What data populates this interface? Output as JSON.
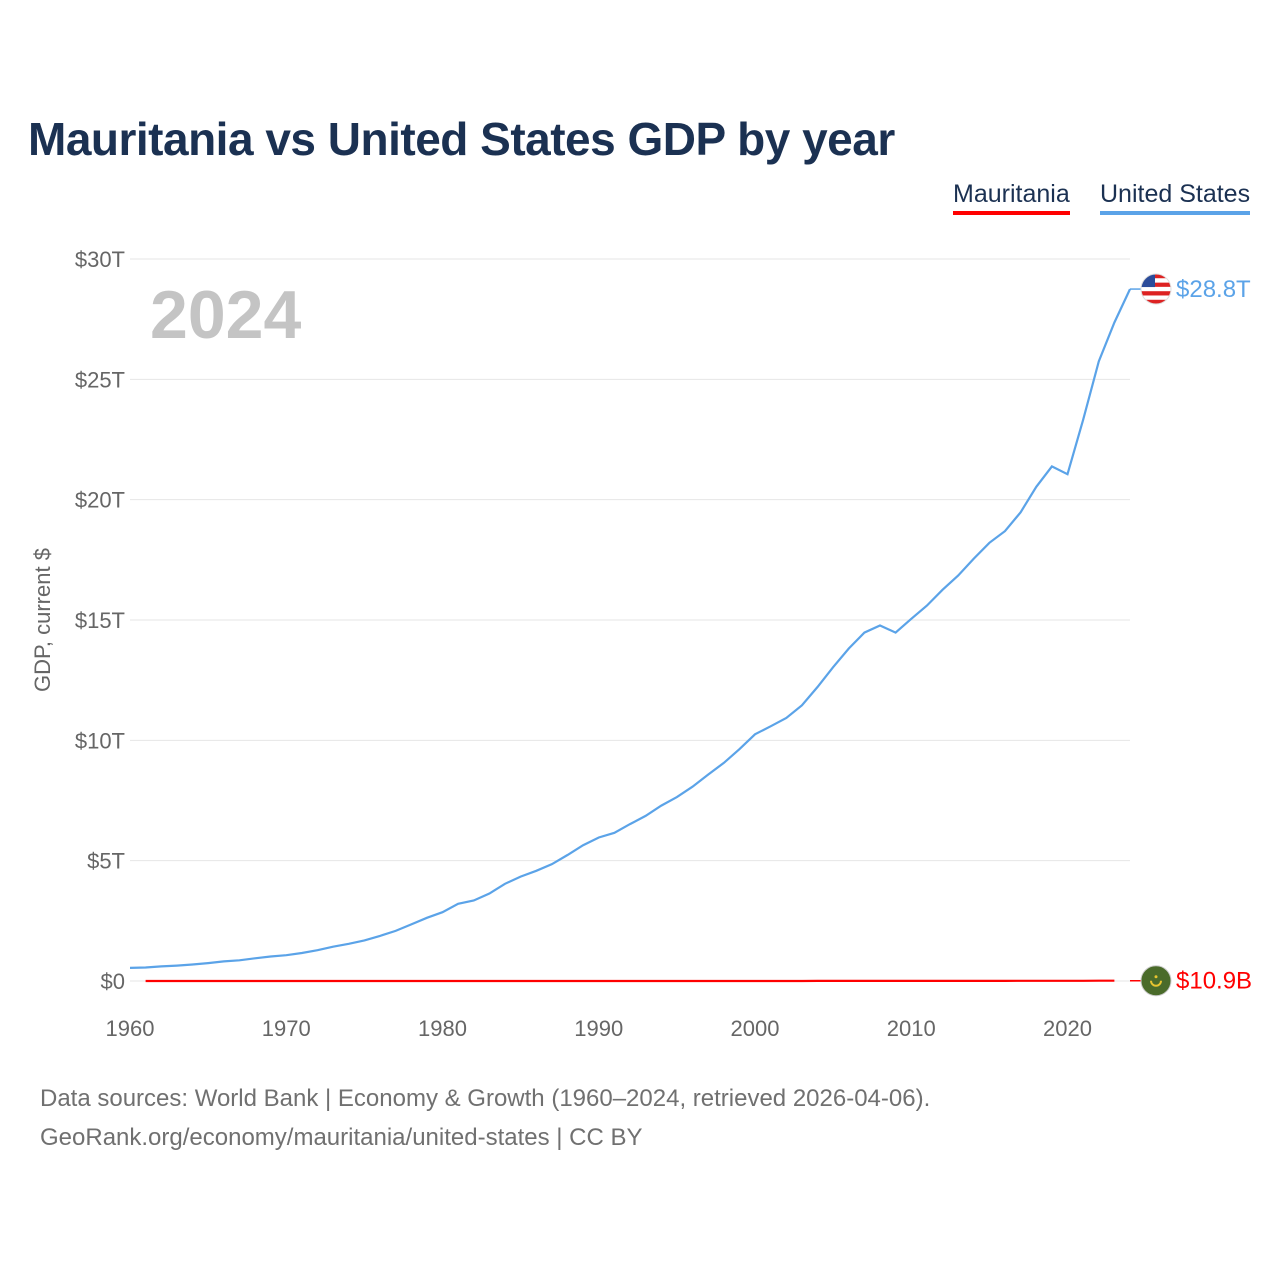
{
  "title": "Mauritania vs United States GDP by year",
  "legend": [
    {
      "label": "Mauritania",
      "color": "#ff0000"
    },
    {
      "label": "United States",
      "color": "#5ba3e8"
    }
  ],
  "sources": {
    "line1": "Data sources: World Bank | Economy & Growth (1960–2024, retrieved 2026-04-06).",
    "line2": "GeoRank.org/economy/mauritania/united-states | CC BY"
  },
  "chart_data": {
    "type": "line",
    "title": "Mauritania vs United States GDP by year",
    "ylabel": "GDP, current $",
    "xlabel": "",
    "current_year_label": "2024",
    "xlim": [
      1960,
      2024
    ],
    "ylim": [
      0,
      30
    ],
    "y_unit": "trillion USD",
    "x_ticks": [
      "1960",
      "1970",
      "1980",
      "1990",
      "2000",
      "2010",
      "2020"
    ],
    "y_ticks": [
      {
        "value": 0,
        "label": "$0"
      },
      {
        "value": 5,
        "label": "$5T"
      },
      {
        "value": 10,
        "label": "$10T"
      },
      {
        "value": 15,
        "label": "$15T"
      },
      {
        "value": 20,
        "label": "$20T"
      },
      {
        "value": 25,
        "label": "$25T"
      },
      {
        "value": 30,
        "label": "$30T"
      }
    ],
    "grid": true,
    "legend_position": "top-right",
    "series": [
      {
        "name": "United States",
        "color": "#5ba3e8",
        "end_label": "$28.8T",
        "flag": "us-flag",
        "start_year": 1960,
        "values": [
          0.543,
          0.563,
          0.605,
          0.638,
          0.686,
          0.744,
          0.815,
          0.862,
          0.943,
          1.019,
          1.073,
          1.165,
          1.279,
          1.425,
          1.545,
          1.685,
          1.873,
          2.082,
          2.352,
          2.627,
          2.857,
          3.207,
          3.344,
          3.634,
          4.037,
          4.339,
          4.58,
          4.855,
          5.236,
          5.642,
          5.963,
          6.158,
          6.52,
          6.859,
          7.287,
          7.64,
          8.073,
          8.578,
          9.063,
          9.631,
          10.251,
          10.582,
          10.929,
          11.457,
          12.217,
          13.039,
          13.815,
          14.475,
          14.77,
          14.478,
          15.049,
          15.6,
          16.254,
          16.843,
          17.551,
          18.206,
          18.695,
          19.477,
          20.533,
          21.381,
          21.06,
          23.315,
          25.744,
          27.361,
          28.751
        ]
      },
      {
        "name": "Mauritania",
        "color": "#ff0000",
        "end_label": "$10.9B",
        "flag": "mauritania-flag",
        "start_year": 1961,
        "values": [
          0.0001,
          0.0001,
          0.0001,
          0.00013,
          0.00016,
          0.00017,
          0.00018,
          0.00019,
          0.0002,
          0.00021,
          0.00025,
          0.0003,
          0.00035,
          0.00045,
          0.00048,
          0.00054,
          0.00058,
          0.00063,
          0.00071,
          0.00074,
          0.00068,
          0.00075,
          0.0007,
          0.0007,
          0.00078,
          0.00085,
          0.00095,
          0.0009,
          0.00102,
          0.00106,
          0.00112,
          0.00118,
          0.0012,
          0.0014,
          0.00142,
          0.0014,
          0.0013,
          0.0013,
          0.0013,
          0.0013,
          0.00135,
          0.0015,
          0.0018,
          0.0022,
          0.0027,
          0.0031,
          0.004,
          0.0035,
          0.0046,
          0.0053,
          0.0057,
          0.0058,
          0.0059,
          0.0052,
          0.0055,
          0.0061,
          0.0071,
          0.0078,
          0.0084,
          0.0098,
          0.01,
          0.0104,
          0.0109
        ]
      }
    ]
  }
}
